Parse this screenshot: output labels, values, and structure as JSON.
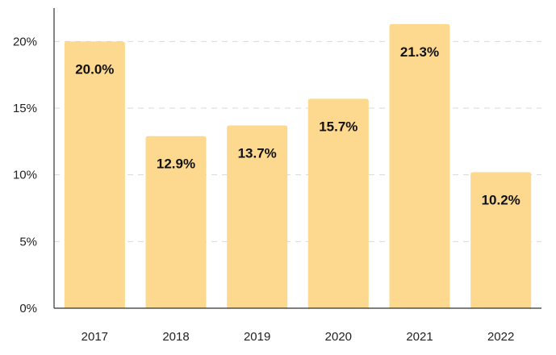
{
  "chart_data": {
    "type": "bar",
    "categories": [
      "2017",
      "2018",
      "2019",
      "2020",
      "2021",
      "2022"
    ],
    "values": [
      20.0,
      12.9,
      13.7,
      15.7,
      21.3,
      10.2
    ],
    "data_labels": [
      "20.0%",
      "12.9%",
      "13.7%",
      "15.7%",
      "21.3%",
      "10.2%"
    ],
    "yticks": [
      0,
      5,
      10,
      15,
      20
    ],
    "ytick_labels": [
      "0%",
      "5%",
      "10%",
      "15%",
      "20%"
    ],
    "ylim": [
      0,
      22.5
    ],
    "grid": "horizontal-dashed",
    "legend": "none",
    "bar_color": "#fcd98f",
    "title": "",
    "xlabel": "",
    "ylabel": ""
  }
}
